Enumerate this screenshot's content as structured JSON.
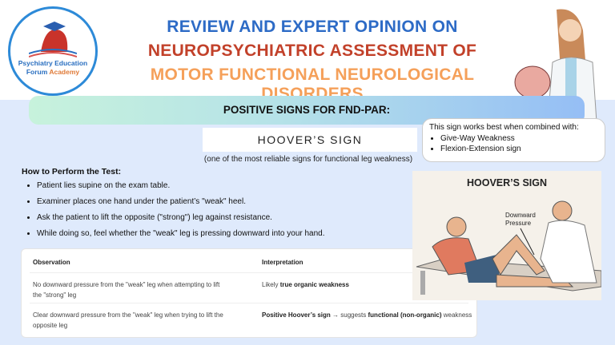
{
  "logo": {
    "line1": "Psychiatry Education",
    "line2a": "Forum ",
    "line2b": "Academy"
  },
  "header": {
    "line1": "REVIEW AND EXPERT OPINION ON",
    "line2": "NEUROPSYCHIATRIC ASSESSMENT OF",
    "line3": "MOTOR FUNCTIONAL NEUROLOGICAL DISORDERS"
  },
  "banner": "POSITIVE SIGNS FOR FND-PAR:",
  "sign": {
    "title": "HOOVER’S SIGN",
    "subtitle": "(one of the most reliable signs for functional leg weakness)"
  },
  "combined": {
    "intro": "This sign works best when combined with:",
    "items": [
      "Give-Way Weakness",
      "Flexion-Extension sign"
    ]
  },
  "how": {
    "heading": "How to Perform the Test:",
    "steps": [
      "Patient lies supine on the exam table.",
      "Examiner places one hand under the patient’s \"weak\" heel.",
      "Ask the patient to lift the opposite (\"strong\") leg against resistance.",
      "While doing so, feel whether the \"weak\" leg is pressing downward into your hand."
    ]
  },
  "table": {
    "headers": [
      "Observation",
      "Interpretation"
    ],
    "rows": [
      {
        "obs": "No downward pressure from the \"weak\" leg when attempting to lift the \"strong\" leg",
        "pre": "Likely ",
        "b1": "true organic weakness",
        "mid": "",
        "b2": "",
        "post": ""
      },
      {
        "obs": "Clear downward pressure from the \"weak\" leg when trying to lift the opposite leg",
        "pre": "",
        "b1": "Positive Hoover’s sign",
        "mid": " → suggests ",
        "b2": "functional (non-organic)",
        "post": " weakness"
      }
    ]
  },
  "illustration": {
    "title": "HOOVER’S SIGN",
    "label1": "Downward",
    "label2": "Pressure"
  }
}
